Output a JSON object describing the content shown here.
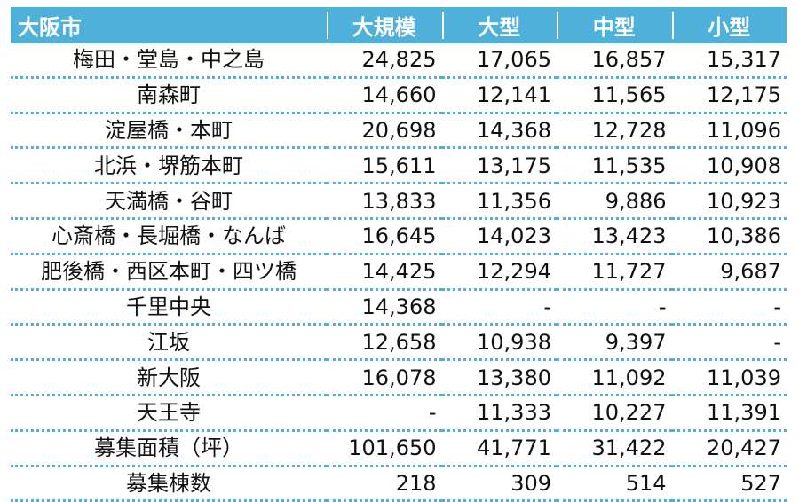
{
  "header": [
    "大阪市",
    "大規模",
    "大型",
    "中型",
    "小型"
  ],
  "rows": [
    {
      "name": "梅田・堂島・中之島",
      "values": [
        "24,825",
        "17,065",
        "16,857",
        "15,317"
      ]
    },
    {
      "name": "南森町",
      "values": [
        "14,660",
        "12,141",
        "11,565",
        "12,175"
      ]
    },
    {
      "name": "淀屋橋・本町",
      "values": [
        "20,698",
        "14,368",
        "12,728",
        "11,096"
      ]
    },
    {
      "name": "北浜・堺筋本町",
      "values": [
        "15,611",
        "13,175",
        "11,535",
        "10,908"
      ]
    },
    {
      "name": "天満橋・谷町",
      "values": [
        "13,833",
        "11,356",
        "9,886",
        "10,923"
      ]
    },
    {
      "name": "心斎橋・長堀橋・なんば",
      "values": [
        "16,645",
        "14,023",
        "13,423",
        "10,386"
      ]
    },
    {
      "name": "肥後橋・西区本町・四ツ橋",
      "values": [
        "14,425",
        "12,294",
        "11,727",
        "9,687"
      ]
    },
    {
      "name": "千里中央",
      "values": [
        "14,368",
        "-",
        "-",
        "-"
      ]
    },
    {
      "name": "江坂",
      "values": [
        "12,658",
        "10,938",
        "9,397",
        "-"
      ]
    },
    {
      "name": "新大阪",
      "values": [
        "16,078",
        "13,380",
        "11,092",
        "11,039"
      ]
    },
    {
      "name": "天王寺",
      "values": [
        "-",
        "11,333",
        "10,227",
        "11,391"
      ]
    },
    {
      "name": "募集面積（坪）",
      "values": [
        "101,650",
        "41,771",
        "31,422",
        "20,427"
      ]
    },
    {
      "name": "募集棟数",
      "values": [
        "218",
        "309",
        "514",
        "527"
      ]
    }
  ],
  "colors": {
    "header_bg": "#4fb1d9",
    "header_text": "#ffffff",
    "row_divider": "#4fb1d9"
  }
}
